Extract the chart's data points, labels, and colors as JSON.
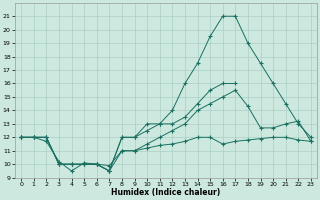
{
  "xlabel": "Humidex (Indice chaleur)",
  "background_color": "#cce8df",
  "grid_color": "#aacfc5",
  "line_color": "#1a7060",
  "line1_x": [
    0,
    1,
    2,
    3,
    4,
    5,
    6,
    7,
    8,
    9,
    10,
    11,
    12,
    13,
    14,
    15,
    16,
    17,
    18,
    19,
    20,
    21,
    22,
    23
  ],
  "line1_y": [
    12,
    12,
    12,
    10,
    10,
    10,
    10,
    9.5,
    12,
    12,
    13,
    13,
    14,
    16,
    17.5,
    19.5,
    21,
    21,
    19,
    17.5,
    16,
    14.5,
    13,
    12
  ],
  "line2_x": [
    0,
    1,
    2,
    3,
    4,
    5,
    6,
    7,
    8,
    9,
    10,
    11,
    12,
    13,
    14,
    15,
    16,
    17,
    18,
    19,
    20,
    21,
    22,
    23
  ],
  "line2_y": [
    12,
    12,
    12,
    10,
    10,
    10,
    10,
    9.5,
    12,
    12,
    12.5,
    13,
    13,
    13.5,
    14.5,
    15.5,
    16,
    16,
    null,
    null,
    null,
    null,
    null,
    null
  ],
  "line3_x": [
    0,
    1,
    2,
    3,
    4,
    5,
    6,
    7,
    8,
    9,
    10,
    11,
    12,
    13,
    14,
    15,
    16,
    17,
    18,
    19,
    20,
    21,
    22,
    23
  ],
  "line3_y": [
    12,
    12,
    12,
    10,
    10,
    10,
    10,
    9.5,
    11,
    11,
    11.5,
    12,
    12.5,
    13,
    14,
    14.5,
    15,
    15.5,
    14.3,
    12.7,
    12.7,
    13,
    13.2,
    11.7
  ],
  "line4_x": [
    0,
    1,
    2,
    3,
    4,
    5,
    6,
    7,
    8,
    9,
    10,
    11,
    12,
    13,
    14,
    15,
    16,
    17,
    18,
    19,
    20,
    21,
    22,
    23
  ],
  "line4_y": [
    12,
    12,
    11.7,
    10.2,
    9.5,
    10.1,
    10.0,
    9.9,
    11,
    11,
    11.2,
    11.4,
    11.5,
    11.7,
    12,
    12,
    11.5,
    11.7,
    11.8,
    11.9,
    12,
    12,
    11.8,
    11.7
  ],
  "ylim": [
    9,
    22
  ],
  "xlim": [
    -0.5,
    23.5
  ],
  "yticks": [
    9,
    10,
    11,
    12,
    13,
    14,
    15,
    16,
    17,
    18,
    19,
    20,
    21
  ],
  "xticks": [
    0,
    1,
    2,
    3,
    4,
    5,
    6,
    7,
    8,
    9,
    10,
    11,
    12,
    13,
    14,
    15,
    16,
    17,
    18,
    19,
    20,
    21,
    22,
    23
  ]
}
